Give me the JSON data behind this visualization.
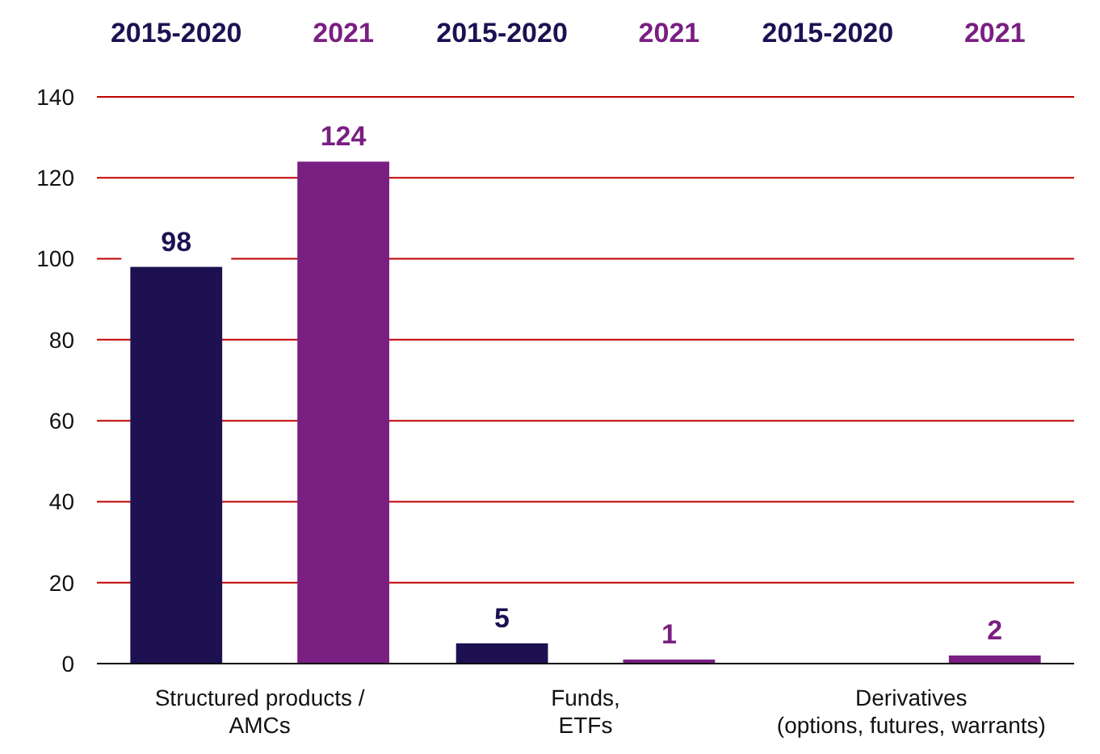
{
  "chart_data": {
    "type": "bar",
    "categories": [
      "Structured products /\nAMCs",
      "Funds,\nETFs",
      "Derivatives\n(options, futures, warrants)"
    ],
    "series": [
      {
        "name": "2015-2020",
        "color": "#1e1152",
        "values": [
          98,
          5,
          null
        ]
      },
      {
        "name": "2021",
        "color": "#7a1f82",
        "values": [
          124,
          1,
          2
        ]
      }
    ],
    "ylim": [
      0,
      140
    ],
    "yticks": [
      0,
      20,
      40,
      60,
      80,
      100,
      120,
      140
    ],
    "grid": "y",
    "legend": "top",
    "data_labels": true
  }
}
